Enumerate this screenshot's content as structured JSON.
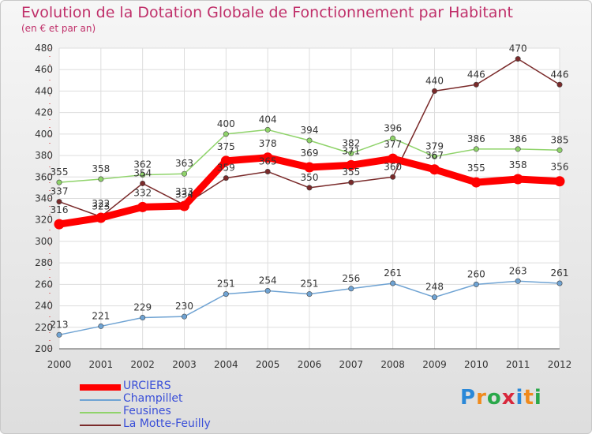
{
  "chart_data": {
    "type": "line",
    "title": "Evolution de la Dotation Globale de Fonctionnement par Habitant",
    "subtitle": "(en € et par an)",
    "x": [
      "2000",
      "2001",
      "2002",
      "2003",
      "2004",
      "2005",
      "2006",
      "2007",
      "2008",
      "2009",
      "2010",
      "2011",
      "2012"
    ],
    "ylim": [
      200,
      480
    ],
    "yticks": [
      "200",
      "220",
      "240",
      "260",
      "280",
      "300",
      "320",
      "340",
      "360",
      "380",
      "400",
      "420",
      "440",
      "460",
      "480"
    ],
    "grid": true,
    "legend_position": "bottom-left",
    "series": [
      {
        "name": "URCIERS",
        "color": "#ff0000",
        "values": [
          316,
          322,
          332,
          333,
          375,
          378,
          369,
          371,
          377,
          367,
          355,
          358,
          356
        ],
        "labels": [
          "316",
          "322",
          "332",
          "333",
          "375",
          "378",
          "369",
          "371",
          "377",
          "367",
          "355",
          "358",
          "356"
        ]
      },
      {
        "name": "Champillet",
        "color": "#6fa3d3",
        "values": [
          213,
          221,
          229,
          230,
          251,
          254,
          251,
          256,
          261,
          248,
          260,
          263,
          261
        ],
        "labels": [
          "213",
          "221",
          "229",
          "230",
          "251",
          "254",
          "251",
          "256",
          "261",
          "248",
          "260",
          "263",
          "261"
        ]
      },
      {
        "name": "Feusines",
        "color": "#8fd36a",
        "values": [
          355,
          358,
          362,
          363,
          400,
          404,
          394,
          382,
          396,
          379,
          386,
          386,
          385
        ],
        "labels": [
          "355",
          "358",
          "362",
          "363",
          "400",
          "404",
          "394",
          "382",
          "396",
          "379",
          "386",
          "386",
          "385"
        ]
      },
      {
        "name": "La Motte-Feuilly",
        "color": "#7a2a2a",
        "values": [
          337,
          323,
          354,
          334,
          359,
          365,
          350,
          355,
          360,
          440,
          446,
          470,
          446
        ],
        "labels": [
          "337",
          "323",
          "354",
          "334",
          "359",
          "365",
          "350",
          "355",
          "360",
          "440",
          "446",
          "470",
          "446"
        ]
      }
    ]
  },
  "brand": {
    "letters": [
      "P",
      "r",
      "o",
      "x",
      "i",
      "t",
      "i"
    ],
    "colors": [
      "#2a88d8",
      "#f08a1c",
      "#2aa84a",
      "#d8283c",
      "#2a88d8",
      "#f08a1c",
      "#2aa84a"
    ]
  }
}
